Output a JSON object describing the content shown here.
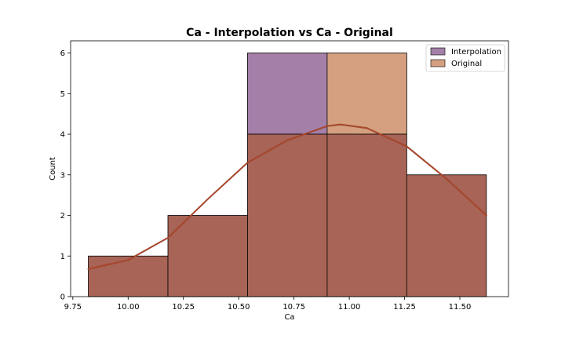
{
  "chart_data": {
    "type": "bar",
    "title": "Ca - Interpolation vs Ca - Original",
    "xlabel": "Ca",
    "ylabel": "Count",
    "xlim": [
      9.74,
      11.72
    ],
    "ylim": [
      0,
      6.3
    ],
    "x_ticks": [
      9.75,
      10.0,
      10.25,
      10.5,
      10.75,
      11.0,
      11.25,
      11.5
    ],
    "x_tick_labels": [
      "9.75",
      "10.00",
      "10.25",
      "10.50",
      "10.75",
      "11.00",
      "11.25",
      "11.50"
    ],
    "y_ticks": [
      0,
      1,
      2,
      3,
      4,
      5,
      6
    ],
    "y_tick_labels": [
      "0",
      "1",
      "2",
      "3",
      "4",
      "5",
      "6"
    ],
    "bin_edges": [
      9.82,
      10.18,
      10.54,
      10.9,
      11.26,
      11.62
    ],
    "series": [
      {
        "name": "Interpolation",
        "color": "#a47fa8",
        "counts": [
          1,
          2,
          6,
          4,
          3
        ],
        "kde": [
          [
            9.82,
            0.68
          ],
          [
            10.0,
            0.9
          ],
          [
            10.18,
            1.45
          ],
          [
            10.36,
            2.4
          ],
          [
            10.54,
            3.3
          ],
          [
            10.72,
            3.85
          ],
          [
            10.9,
            4.2
          ],
          [
            10.96,
            4.24
          ],
          [
            11.08,
            4.15
          ],
          [
            11.26,
            3.7
          ],
          [
            11.44,
            2.9
          ],
          [
            11.62,
            2.0
          ]
        ]
      },
      {
        "name": "Original",
        "color": "#d4a07f",
        "counts": [
          1,
          2,
          4,
          6,
          3
        ],
        "kde": [
          [
            9.82,
            0.68
          ],
          [
            10.0,
            0.9
          ],
          [
            10.18,
            1.45
          ],
          [
            10.36,
            2.4
          ],
          [
            10.54,
            3.3
          ],
          [
            10.72,
            3.85
          ],
          [
            10.9,
            4.2
          ],
          [
            10.96,
            4.24
          ],
          [
            11.08,
            4.15
          ],
          [
            11.26,
            3.7
          ],
          [
            11.44,
            2.9
          ],
          [
            11.62,
            2.0
          ]
        ]
      }
    ],
    "overlap_color": "#a86456",
    "kde_colors": [
      "#8e3a2c",
      "#b04a2a"
    ],
    "legend_position": "top-right",
    "grid": false
  }
}
